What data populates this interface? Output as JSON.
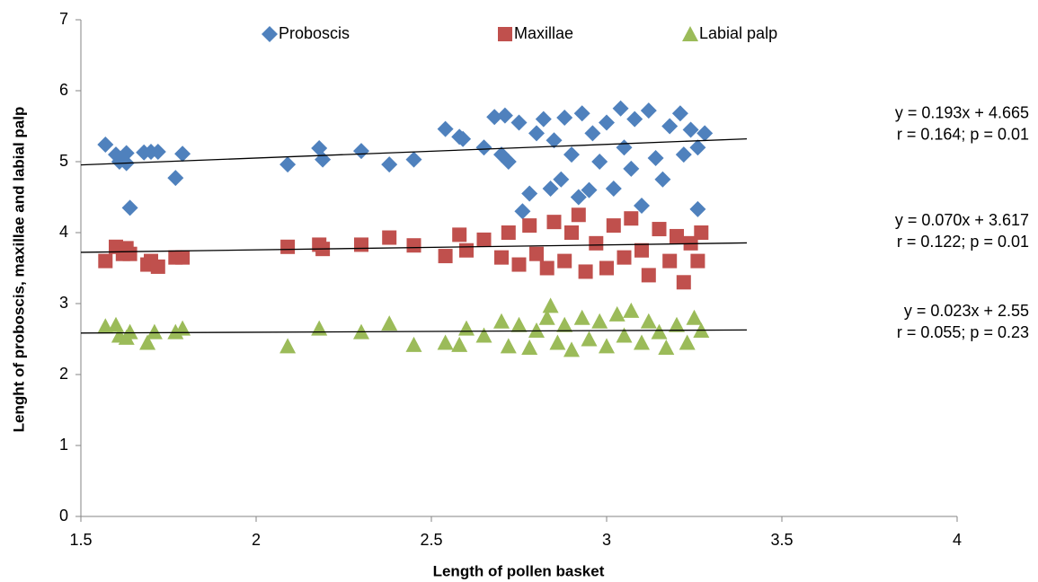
{
  "chart_data": {
    "type": "scatter",
    "x_label": "Length of pollen basket",
    "y_label": "Lenght of proboscis, maxillae and labial palp",
    "xlim": [
      1.5,
      4
    ],
    "xticks": [
      1.5,
      2,
      2.5,
      3,
      3.5,
      4
    ],
    "ylim": [
      0,
      7
    ],
    "yticks": [
      0,
      1,
      2,
      3,
      4,
      5,
      6,
      7
    ],
    "series": [
      {
        "name": "Proboscis",
        "color": "#4f81bd",
        "marker": "diamond",
        "x": [
          1.57,
          1.6,
          1.61,
          1.63,
          1.63,
          1.64,
          1.68,
          1.7,
          1.72,
          1.77,
          1.79,
          2.09,
          2.18,
          2.19,
          2.3,
          2.38,
          2.45,
          2.54,
          2.58,
          2.59,
          2.65,
          2.68,
          2.7,
          2.71,
          2.72,
          2.75,
          2.76,
          2.78,
          2.8,
          2.82,
          2.84,
          2.85,
          2.87,
          2.88,
          2.9,
          2.92,
          2.93,
          2.95,
          2.96,
          2.98,
          3.0,
          3.02,
          3.04,
          3.05,
          3.07,
          3.08,
          3.1,
          3.12,
          3.14,
          3.16,
          3.18,
          3.21,
          3.22,
          3.24,
          3.26,
          3.26,
          3.28
        ],
        "values": [
          5.24,
          5.1,
          5.0,
          5.12,
          4.98,
          4.35,
          5.13,
          5.14,
          5.14,
          4.77,
          5.11,
          4.96,
          5.19,
          5.03,
          5.15,
          4.96,
          5.03,
          5.46,
          5.35,
          5.32,
          5.2,
          5.63,
          5.1,
          5.65,
          5.0,
          5.55,
          4.3,
          4.55,
          5.4,
          5.6,
          4.62,
          5.3,
          4.75,
          5.62,
          5.1,
          4.5,
          5.68,
          4.6,
          5.4,
          5.0,
          5.55,
          4.62,
          5.75,
          5.2,
          4.9,
          5.6,
          4.38,
          5.72,
          5.05,
          4.75,
          5.5,
          5.68,
          5.1,
          5.45,
          4.33,
          5.2,
          5.4
        ],
        "trend": {
          "equation": "y = 0.193x + 4.665",
          "stats": "r = 0.164; p = 0.01",
          "slope": 0.193,
          "intercept": 4.665,
          "x": [
            1.5,
            3.4
          ]
        }
      },
      {
        "name": "Maxillae",
        "color": "#c0504d",
        "marker": "square",
        "x": [
          1.57,
          1.6,
          1.62,
          1.63,
          1.64,
          1.69,
          1.7,
          1.72,
          1.77,
          1.79,
          2.09,
          2.18,
          2.19,
          2.3,
          2.38,
          2.45,
          2.54,
          2.58,
          2.6,
          2.65,
          2.7,
          2.72,
          2.75,
          2.78,
          2.8,
          2.83,
          2.85,
          2.88,
          2.9,
          2.92,
          2.94,
          2.97,
          3.0,
          3.02,
          3.05,
          3.07,
          3.1,
          3.12,
          3.15,
          3.18,
          3.2,
          3.22,
          3.24,
          3.26,
          3.27
        ],
        "values": [
          3.6,
          3.8,
          3.7,
          3.78,
          3.7,
          3.55,
          3.6,
          3.52,
          3.65,
          3.65,
          3.8,
          3.83,
          3.77,
          3.83,
          3.93,
          3.82,
          3.67,
          3.97,
          3.75,
          3.9,
          3.65,
          4.0,
          3.55,
          4.1,
          3.7,
          3.5,
          4.15,
          3.6,
          4.0,
          4.25,
          3.45,
          3.85,
          3.5,
          4.1,
          3.65,
          4.2,
          3.75,
          3.4,
          4.05,
          3.6,
          3.95,
          3.3,
          3.85,
          3.6,
          4.0
        ],
        "trend": {
          "equation": "y = 0.070x + 3.617",
          "stats": "r = 0.122; p = 0.01",
          "slope": 0.07,
          "intercept": 3.617,
          "x": [
            1.5,
            3.4
          ]
        }
      },
      {
        "name": "Labial palp",
        "color": "#9bbb59",
        "marker": "triangle",
        "x": [
          1.57,
          1.6,
          1.61,
          1.63,
          1.64,
          1.69,
          1.71,
          1.77,
          1.79,
          2.09,
          2.18,
          2.3,
          2.38,
          2.45,
          2.54,
          2.58,
          2.6,
          2.65,
          2.7,
          2.72,
          2.75,
          2.78,
          2.8,
          2.83,
          2.84,
          2.86,
          2.88,
          2.9,
          2.93,
          2.95,
          2.98,
          3.0,
          3.03,
          3.05,
          3.07,
          3.1,
          3.12,
          3.15,
          3.17,
          3.2,
          3.23,
          3.25,
          3.27
        ],
        "values": [
          2.68,
          2.7,
          2.55,
          2.52,
          2.6,
          2.45,
          2.6,
          2.6,
          2.65,
          2.4,
          2.65,
          2.6,
          2.72,
          2.42,
          2.45,
          2.42,
          2.65,
          2.55,
          2.75,
          2.4,
          2.7,
          2.38,
          2.62,
          2.8,
          2.97,
          2.45,
          2.7,
          2.35,
          2.8,
          2.5,
          2.75,
          2.4,
          2.85,
          2.55,
          2.9,
          2.45,
          2.75,
          2.6,
          2.38,
          2.7,
          2.45,
          2.8,
          2.62
        ],
        "trend": {
          "equation": "y = 0.023x + 2.55",
          "stats": "r = 0.055; p = 0.23",
          "slope": 0.023,
          "intercept": 2.55,
          "x": [
            1.5,
            3.4
          ]
        }
      }
    ]
  }
}
